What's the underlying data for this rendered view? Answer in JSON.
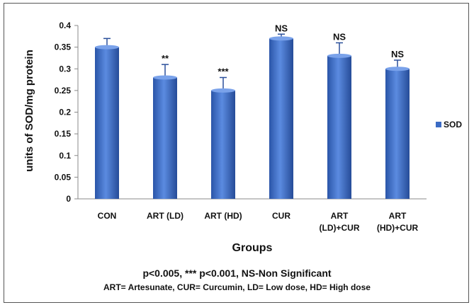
{
  "chart_data": {
    "type": "bar",
    "categories": [
      [
        "CON"
      ],
      [
        "ART (LD)"
      ],
      [
        "ART (HD)"
      ],
      [
        "CUR"
      ],
      [
        "ART",
        "(LD)+CUR"
      ],
      [
        "ART",
        "(HD)+CUR"
      ]
    ],
    "series": [
      {
        "name": "SOD",
        "values": [
          0.35,
          0.28,
          0.25,
          0.37,
          0.33,
          0.3
        ],
        "errors": [
          0.02,
          0.03,
          0.03,
          0.01,
          0.03,
          0.02
        ],
        "color": "#3b6bc4"
      }
    ],
    "significance": [
      "",
      "**",
      "***",
      "NS",
      "NS",
      "NS"
    ],
    "xlabel": "Groups",
    "ylabel": "units of SOD/mg protein",
    "ylim": [
      0,
      0.4
    ],
    "yticks": [
      "0",
      "0.05",
      "0.1",
      "0.15",
      "0.2",
      "0.25",
      "0.3",
      "0.35",
      "0.4"
    ],
    "grid": false,
    "legend": "right",
    "notes": [
      "p<0.005, *** p<0.001, NS-Non Significant",
      "ART= Artesunate, CUR= Curcumin, LD= Low dose, HD= High dose"
    ]
  }
}
